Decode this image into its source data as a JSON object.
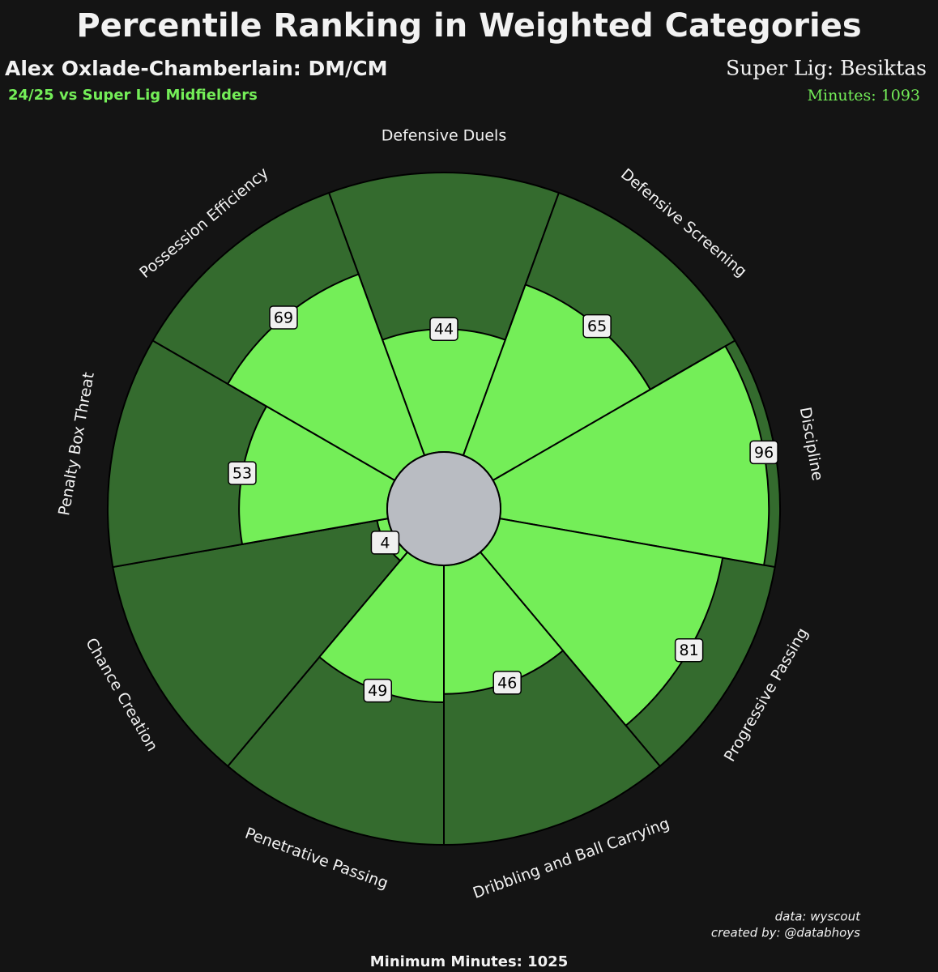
{
  "chart_data": {
    "type": "radial-bar",
    "title": "Percentile Ranking in Weighted Categories",
    "subtitle": "Alex Oxlade-Chamberlain: DM/CM",
    "comparison": "24/25 vs Super Lig Midfielders",
    "team": "Super Lig: Besiktas",
    "minutes": "Minutes: 1093",
    "source": "data: wyscout",
    "credit": "created by: @databhoys",
    "footer": "Minimum Minutes: 1025",
    "categories": [
      "Defensive Duels",
      "Defensive Screening",
      "Discipline",
      "Progressive Passing",
      "Dribbling and Ball Carrying",
      "Penetrative Passing",
      "Chance Creation",
      "Penalty Box Threat",
      "Possession Efficiency"
    ],
    "values": [
      44,
      65,
      96,
      81,
      46,
      49,
      4,
      53,
      69
    ],
    "rlim": [
      0,
      100
    ],
    "color": "#74ee58",
    "background_color": "#346b2e"
  }
}
